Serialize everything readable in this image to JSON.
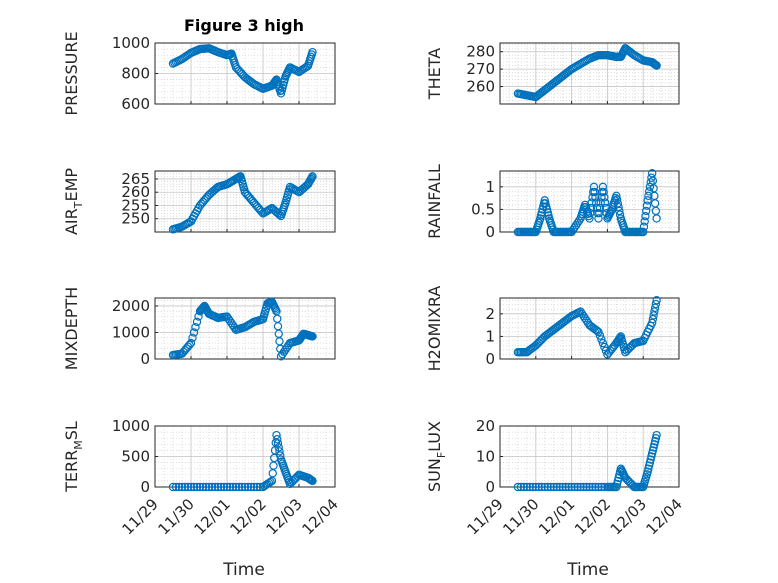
{
  "figure": {
    "title": "Figure 3 high",
    "xlabel": "Time",
    "marker_color": "#0072BD",
    "grid": true,
    "date_ticks": [
      "11/29",
      "11/30",
      "12/01",
      "12/02",
      "12/03",
      "12/04"
    ]
  },
  "chart_data": [
    {
      "type": "scatter",
      "ylabel": "PRESSURE",
      "title": "Figure 3 high",
      "ylim": [
        600,
        1000
      ],
      "yticks": [
        600,
        800,
        1000
      ],
      "xlim": [
        "11/29",
        "12/04"
      ],
      "x": [
        "11/29 12:00",
        "11/29 18:00",
        "11/30 00:00",
        "11/30 06:00",
        "11/30 12:00",
        "11/30 18:00",
        "12/01 00:00",
        "12/01 03:00",
        "12/01 06:00",
        "12/01 12:00",
        "12/01 18:00",
        "12/02 00:00",
        "12/02 06:00",
        "12/02 09:00",
        "12/02 12:00",
        "12/02 15:00",
        "12/02 18:00",
        "12/03 00:00",
        "12/03 06:00",
        "12/03 09:00"
      ],
      "y": [
        865,
        895,
        935,
        960,
        965,
        940,
        920,
        930,
        840,
        775,
        730,
        700,
        720,
        760,
        670,
        780,
        840,
        810,
        850,
        940
      ]
    },
    {
      "type": "scatter",
      "ylabel": "THETA",
      "ylim": [
        250,
        285
      ],
      "yticks": [
        260,
        270,
        280
      ],
      "xlim": [
        "11/29",
        "12/04"
      ],
      "x": [
        "11/29 12:00",
        "11/29 18:00",
        "11/30 00:00",
        "11/30 06:00",
        "11/30 12:00",
        "11/30 18:00",
        "12/01 00:00",
        "12/01 06:00",
        "12/01 12:00",
        "12/01 18:00",
        "12/02 00:00",
        "12/02 06:00",
        "12/02 09:00",
        "12/02 12:00",
        "12/02 18:00",
        "12/03 00:00",
        "12/03 06:00",
        "12/03 09:00"
      ],
      "y": [
        256,
        255,
        254,
        258,
        262,
        266,
        270,
        273,
        276,
        278,
        278,
        277,
        277,
        282,
        278,
        275,
        274,
        272
      ]
    },
    {
      "type": "scatter",
      "ylabel": "AIR_T_EMP",
      "ylim": [
        245,
        268
      ],
      "yticks": [
        250,
        255,
        260,
        265
      ],
      "xlim": [
        "11/29",
        "12/04"
      ],
      "x": [
        "11/29 12:00",
        "11/29 18:00",
        "11/30 00:00",
        "11/30 06:00",
        "11/30 12:00",
        "11/30 18:00",
        "12/01 00:00",
        "12/01 06:00",
        "12/01 09:00",
        "12/01 12:00",
        "12/01 18:00",
        "12/02 00:00",
        "12/02 06:00",
        "12/02 12:00",
        "12/02 15:00",
        "12/02 18:00",
        "12/03 00:00",
        "12/03 06:00",
        "12/03 09:00"
      ],
      "y": [
        246,
        247,
        249,
        255,
        259,
        262,
        263,
        265,
        266,
        260,
        256,
        252,
        254,
        251,
        256,
        262,
        260,
        263,
        266
      ]
    },
    {
      "type": "scatter",
      "ylabel": "RAINFALL",
      "ylim": [
        0,
        1.35
      ],
      "yticks": [
        0,
        0.5,
        1
      ],
      "xlim": [
        "11/29",
        "12/04"
      ],
      "x": [
        "11/29 12:00",
        "11/29 18:00",
        "11/30 00:00",
        "11/30 03:00",
        "11/30 06:00",
        "11/30 09:00",
        "11/30 12:00",
        "11/30 18:00",
        "12/01 00:00",
        "12/01 06:00",
        "12/01 09:00",
        "12/01 12:00",
        "12/01 15:00",
        "12/01 18:00",
        "12/01 21:00",
        "12/02 00:00",
        "12/02 03:00",
        "12/02 06:00",
        "12/02 09:00",
        "12/02 12:00",
        "12/02 18:00",
        "12/03 00:00",
        "12/03 03:00",
        "12/03 06:00",
        "12/03 09:00"
      ],
      "y": [
        0,
        0,
        0,
        0.3,
        0.7,
        0.3,
        0,
        0,
        0,
        0.3,
        0.6,
        0.3,
        1.0,
        0.3,
        1.0,
        0.3,
        0.5,
        0.8,
        0.3,
        0,
        0,
        0,
        0.7,
        1.3,
        0.3
      ]
    },
    {
      "type": "scatter",
      "ylabel": "MIXDEPTH",
      "ylim": [
        0,
        2300
      ],
      "yticks": [
        0,
        1000,
        2000
      ],
      "xlim": [
        "11/29",
        "12/04"
      ],
      "x": [
        "11/29 12:00",
        "11/29 18:00",
        "11/30 00:00",
        "11/30 06:00",
        "11/30 09:00",
        "11/30 12:00",
        "11/30 18:00",
        "12/01 00:00",
        "12/01 06:00",
        "12/01 12:00",
        "12/01 18:00",
        "12/02 00:00",
        "12/02 03:00",
        "12/02 06:00",
        "12/02 09:00",
        "12/02 12:00",
        "12/02 18:00",
        "12/03 00:00",
        "12/03 03:00",
        "12/03 06:00",
        "12/03 09:00"
      ],
      "y": [
        150,
        200,
        600,
        1800,
        2000,
        1700,
        1550,
        1600,
        1100,
        1200,
        1400,
        1500,
        2100,
        2150,
        1800,
        100,
        600,
        700,
        950,
        900,
        850
      ]
    },
    {
      "type": "scatter",
      "ylabel": "H2OMIXRA",
      "ylim": [
        0,
        2.7
      ],
      "yticks": [
        0,
        1,
        2
      ],
      "xlim": [
        "11/29",
        "12/04"
      ],
      "x": [
        "11/29 12:00",
        "11/29 18:00",
        "11/30 00:00",
        "11/30 06:00",
        "11/30 12:00",
        "11/30 18:00",
        "12/01 00:00",
        "12/01 06:00",
        "12/01 12:00",
        "12/01 18:00",
        "12/02 00:00",
        "12/02 06:00",
        "12/02 09:00",
        "12/02 12:00",
        "12/02 18:00",
        "12/03 00:00",
        "12/03 06:00",
        "12/03 09:00"
      ],
      "y": [
        0.3,
        0.3,
        0.6,
        1.0,
        1.3,
        1.6,
        1.9,
        2.1,
        1.5,
        1.2,
        0.2,
        0.7,
        1.0,
        0.3,
        0.7,
        0.8,
        1.6,
        2.6
      ]
    },
    {
      "type": "scatter",
      "ylabel": "TERR_M_SL",
      "ylim": [
        0,
        1000
      ],
      "yticks": [
        0,
        500,
        1000
      ],
      "xlim": [
        "11/29",
        "12/04"
      ],
      "x": [
        "11/29 12:00",
        "11/30 00:00",
        "11/30 12:00",
        "12/01 00:00",
        "12/01 12:00",
        "12/02 00:00",
        "12/02 06:00",
        "12/02 09:00",
        "12/02 12:00",
        "12/02 15:00",
        "12/02 18:00",
        "12/03 00:00",
        "12/03 06:00",
        "12/03 09:00"
      ],
      "y": [
        0,
        0,
        0,
        0,
        0,
        0,
        100,
        850,
        450,
        250,
        50,
        200,
        150,
        100
      ]
    },
    {
      "type": "scatter",
      "ylabel": "SUN_F_LUX",
      "ylim": [
        0,
        20
      ],
      "yticks": [
        0,
        10,
        20
      ],
      "xlim": [
        "11/29",
        "12/04"
      ],
      "x": [
        "11/29 12:00",
        "11/30 00:00",
        "11/30 12:00",
        "12/01 00:00",
        "12/01 12:00",
        "12/02 00:00",
        "12/02 06:00",
        "12/02 09:00",
        "12/02 12:00",
        "12/02 18:00",
        "12/03 00:00",
        "12/03 03:00",
        "12/03 06:00",
        "12/03 09:00"
      ],
      "y": [
        0,
        0,
        0,
        0,
        0,
        0,
        0,
        6,
        3,
        0,
        0,
        5,
        11,
        17
      ]
    }
  ]
}
